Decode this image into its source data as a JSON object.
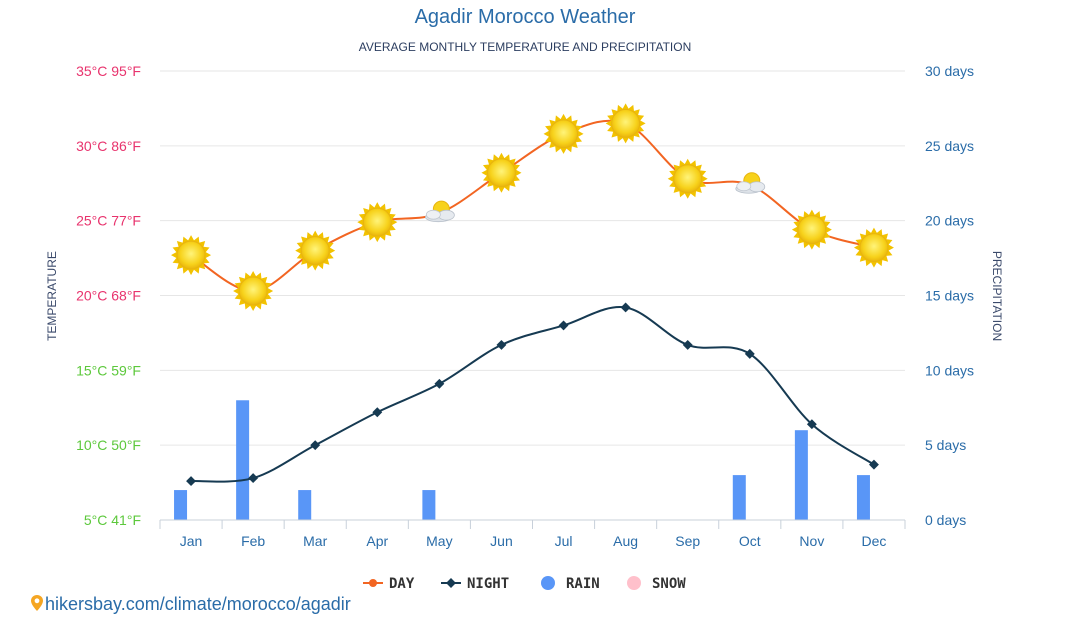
{
  "chart_data": {
    "type": "line",
    "title": "Agadir Morocco Weather",
    "subtitle": "AVERAGE MONTHLY TEMPERATURE AND PRECIPITATION",
    "left_axis_label": "TEMPERATURE",
    "right_axis_label": "PRECIPITATION",
    "categories": [
      "Jan",
      "Feb",
      "Mar",
      "Apr",
      "May",
      "Jun",
      "Jul",
      "Aug",
      "Sep",
      "Oct",
      "Nov",
      "Dec"
    ],
    "left_ticks": [
      {
        "value": 35,
        "label": "35°C 95°F",
        "color": "#e8336d"
      },
      {
        "value": 30,
        "label": "30°C 86°F",
        "color": "#e8336d"
      },
      {
        "value": 25,
        "label": "25°C 77°F",
        "color": "#e8336d"
      },
      {
        "value": 20,
        "label": "20°C 68°F",
        "color": "#e8336d"
      },
      {
        "value": 15,
        "label": "15°C 59°F",
        "color": "#5cc83b"
      },
      {
        "value": 10,
        "label": "10°C 50°F",
        "color": "#5cc83b"
      },
      {
        "value": 5,
        "label": "5°C 41°F",
        "color": "#5cc83b"
      }
    ],
    "right_ticks": [
      {
        "value": 30,
        "label": "30 days"
      },
      {
        "value": 25,
        "label": "25 days"
      },
      {
        "value": 20,
        "label": "20 days"
      },
      {
        "value": 15,
        "label": "15 days"
      },
      {
        "value": 10,
        "label": "10 days"
      },
      {
        "value": 5,
        "label": "5 days"
      },
      {
        "value": 0,
        "label": "0 days"
      }
    ],
    "ylim_temperature": [
      5,
      35
    ],
    "ylim_precipitation": [
      0,
      30
    ],
    "grid": true,
    "legend_position": "bottom",
    "series": [
      {
        "name": "DAY",
        "type": "line",
        "color": "#f26522",
        "axis": "temperature",
        "values": [
          22.7,
          20.3,
          23.0,
          24.9,
          25.5,
          28.2,
          30.8,
          31.5,
          27.8,
          27.4,
          24.4,
          23.2
        ],
        "icons": [
          "sun",
          "sun",
          "sun",
          "sun",
          "sun-cloud",
          "sun",
          "sun",
          "sun",
          "sun",
          "sun-cloud",
          "sun",
          "sun"
        ]
      },
      {
        "name": "NIGHT",
        "type": "line",
        "color": "#163a52",
        "axis": "temperature",
        "values": [
          7.6,
          7.8,
          10.0,
          12.2,
          14.1,
          16.7,
          18.0,
          19.2,
          16.7,
          16.1,
          11.4,
          8.7
        ]
      },
      {
        "name": "RAIN",
        "type": "bar",
        "color": "#5996f7",
        "axis": "precipitation",
        "values": [
          2,
          8,
          2,
          0,
          2,
          0,
          0,
          0,
          0,
          3,
          6,
          3
        ]
      },
      {
        "name": "SNOW",
        "type": "bar",
        "color": "#ffc0cb",
        "axis": "precipitation",
        "values": [
          0,
          0,
          0,
          0,
          0,
          0,
          0,
          0,
          0,
          0,
          0,
          0
        ]
      }
    ]
  },
  "footer": {
    "source_text": "hikersbay.com/climate/morocco/agadir",
    "pin_color": "#f5a623"
  }
}
